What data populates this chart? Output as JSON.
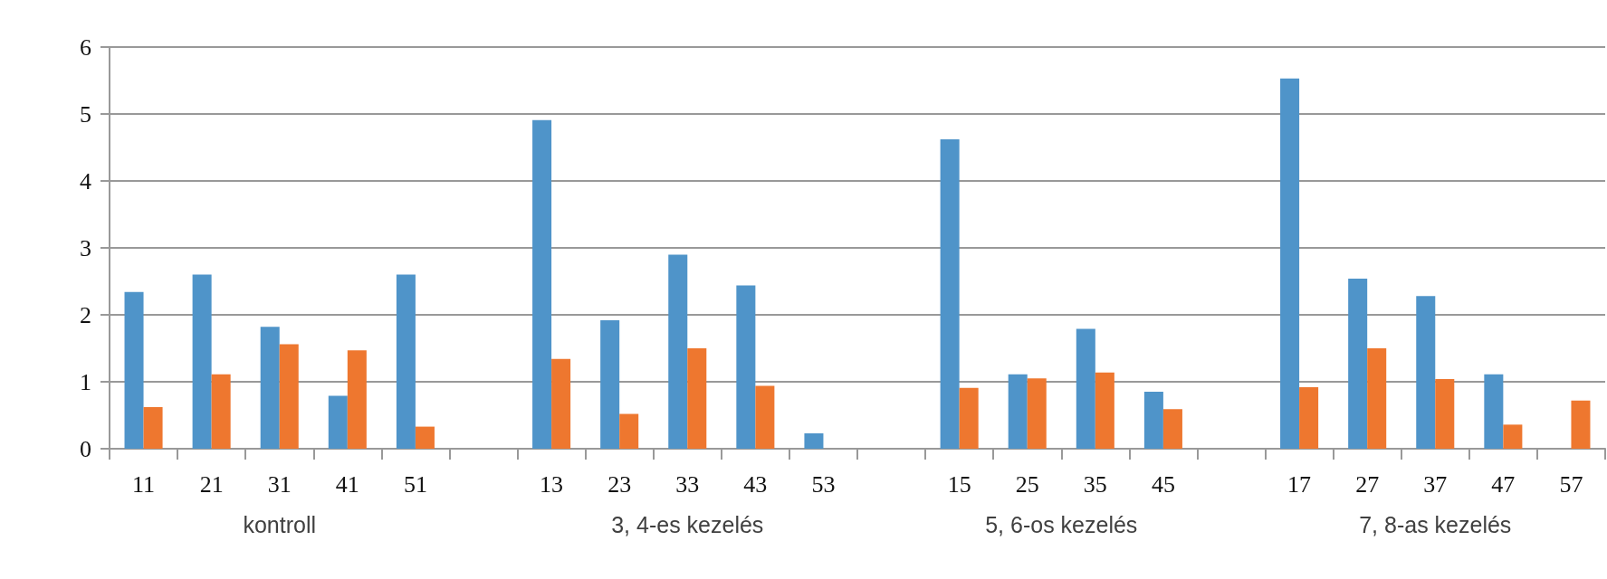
{
  "chart_data": {
    "type": "bar",
    "categories": [
      "11",
      "21",
      "31",
      "41",
      "51",
      null,
      "13",
      "23",
      "33",
      "43",
      "53",
      null,
      "15",
      "25",
      "35",
      "45",
      null,
      "17",
      "27",
      "37",
      "47",
      "57"
    ],
    "series": [
      {
        "color": "#4f94c9",
        "values": [
          2.34,
          2.6,
          1.82,
          0.79,
          2.6,
          null,
          4.91,
          1.92,
          2.9,
          2.44,
          0.23,
          null,
          4.62,
          1.11,
          1.79,
          0.85,
          null,
          5.53,
          2.54,
          2.28,
          1.11,
          null
        ]
      },
      {
        "color": "#ee772f",
        "values": [
          0.62,
          1.11,
          1.56,
          1.47,
          0.33,
          null,
          1.34,
          0.52,
          1.5,
          0.94,
          null,
          null,
          0.91,
          1.05,
          1.14,
          0.59,
          null,
          0.92,
          1.5,
          1.04,
          0.36,
          0.72
        ]
      }
    ],
    "ylim": [
      0,
      6
    ],
    "yticks": [
      0,
      1,
      2,
      3,
      4,
      5,
      6
    ],
    "grid": "y",
    "annotations": [
      "kontroll",
      "3, 4-es kezelés",
      "5, 6-os kezelés",
      "7, 8-as kezelés"
    ]
  }
}
